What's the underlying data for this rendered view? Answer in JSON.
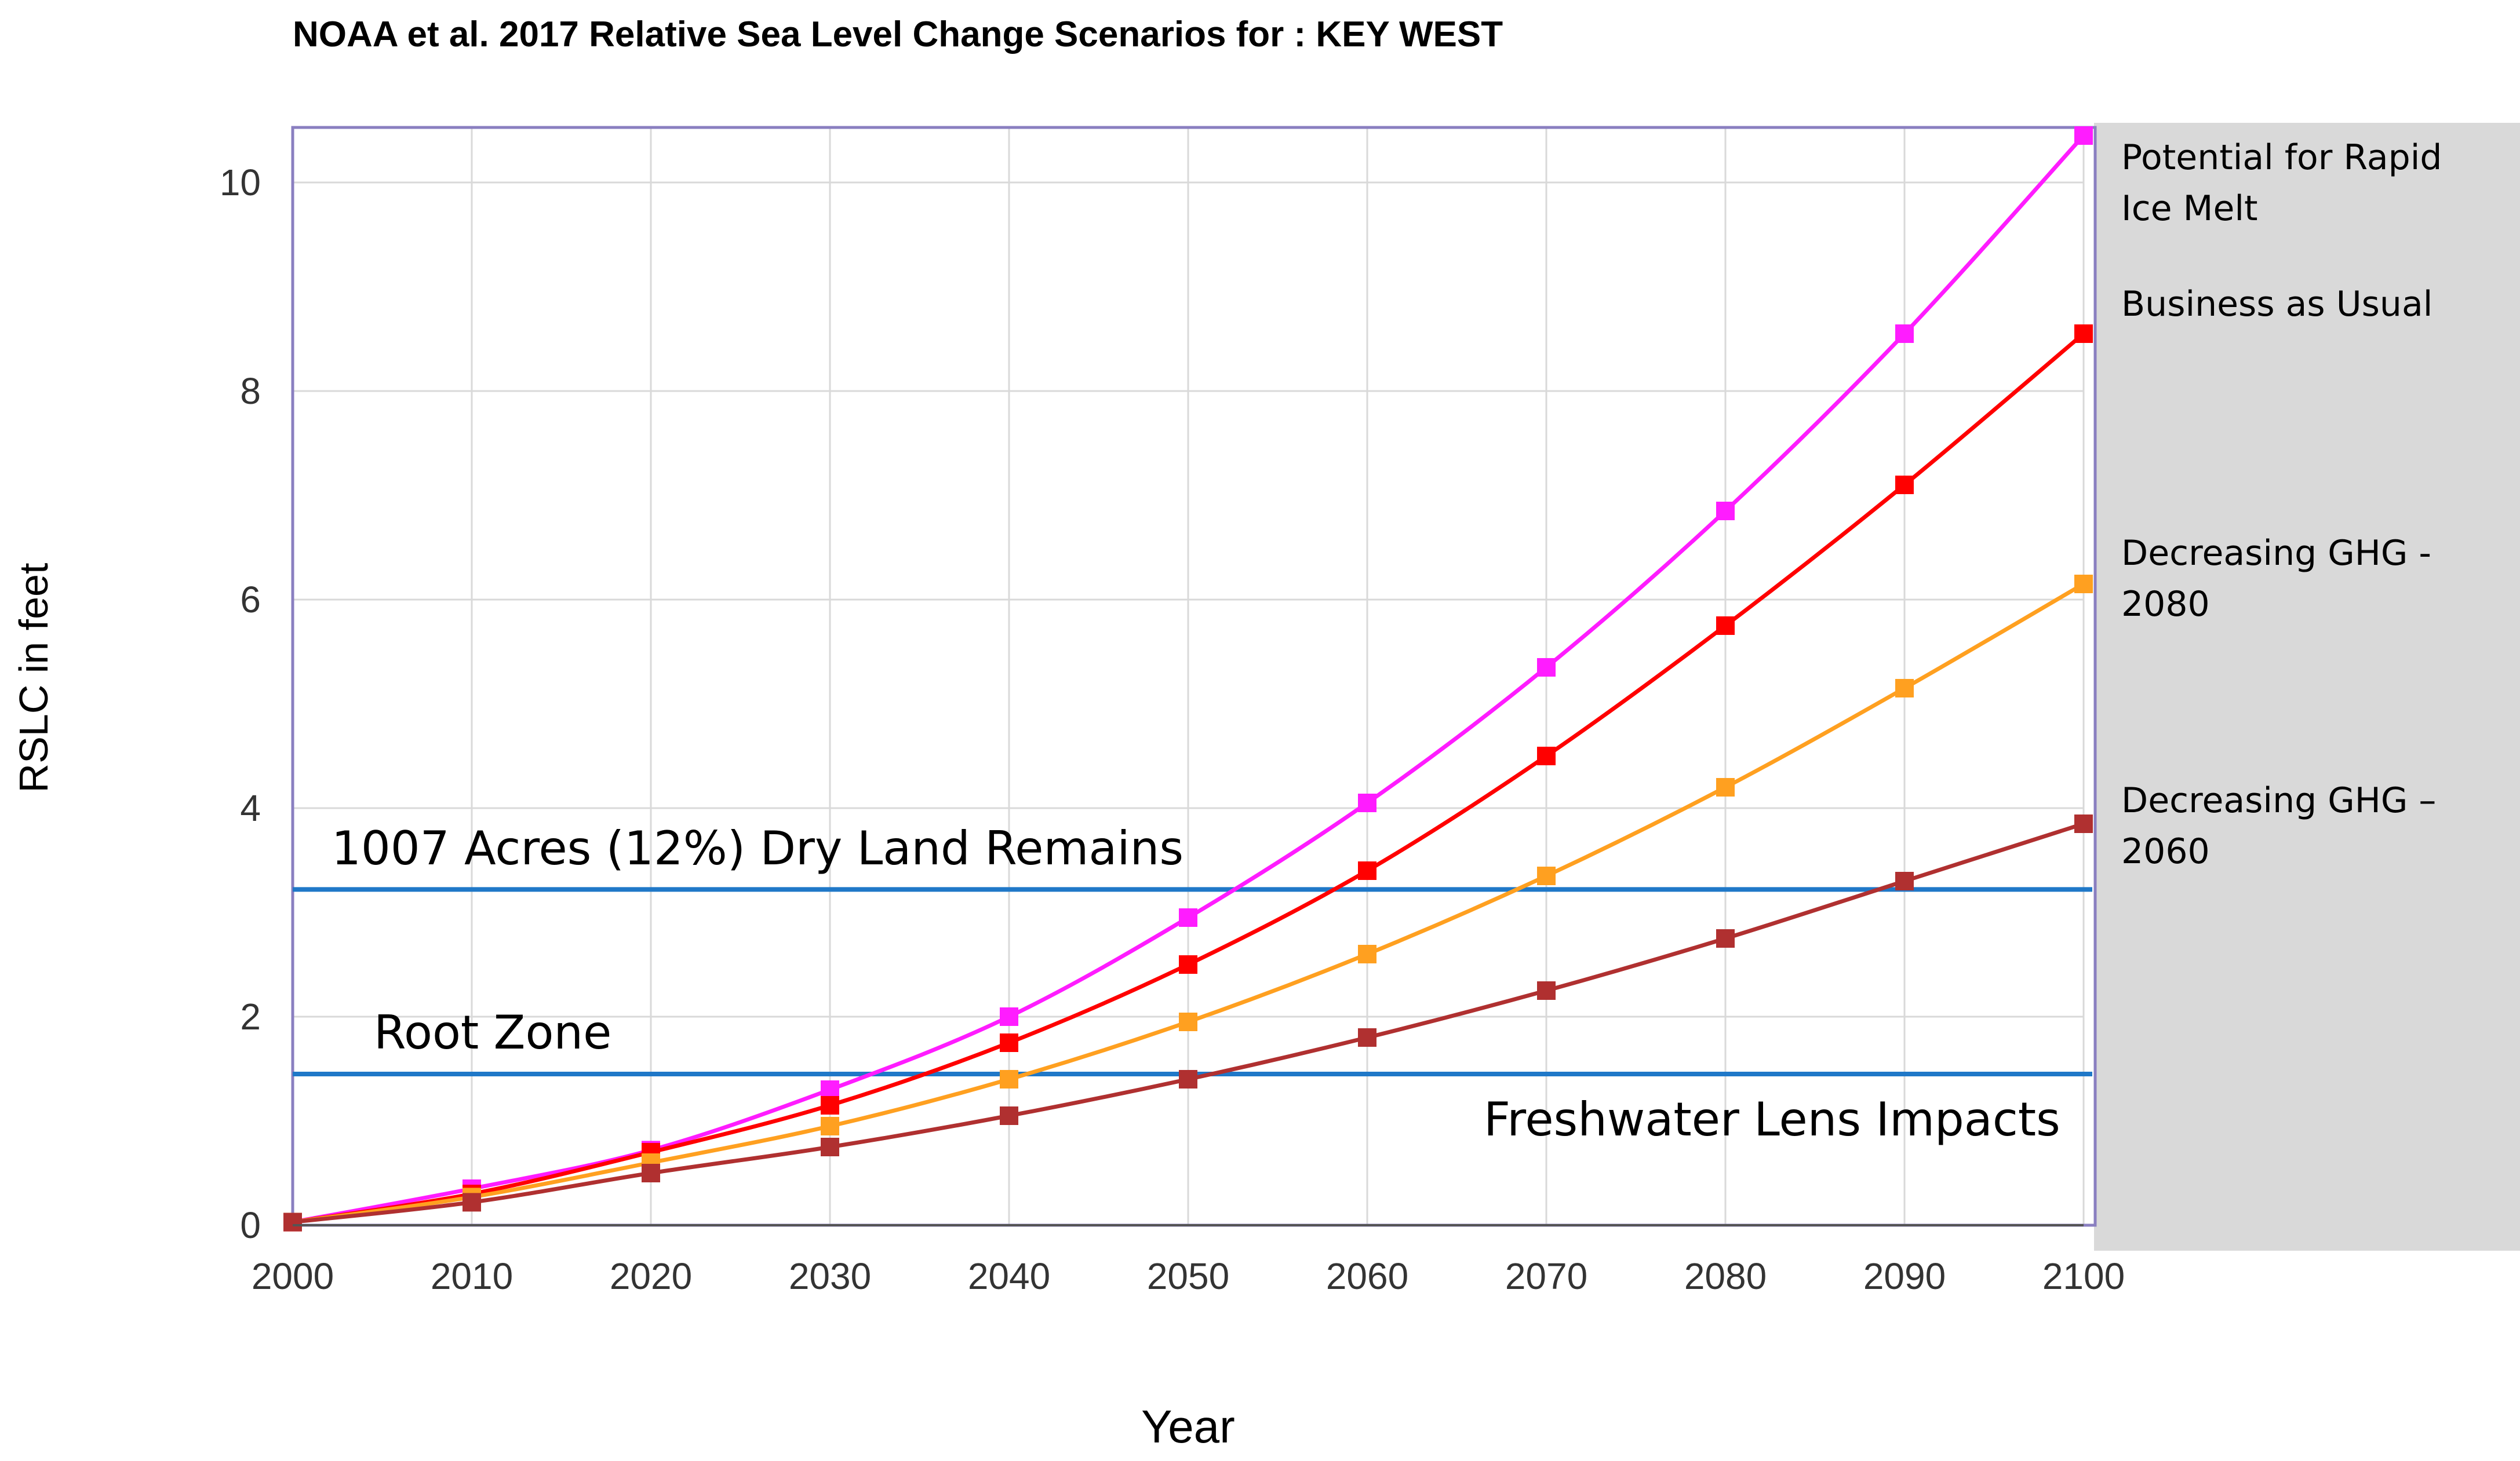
{
  "chart_data": {
    "type": "line",
    "title": "NOAA et al. 2017 Relative Sea Level Change Scenarios for : KEY WEST",
    "xlabel": "Year",
    "ylabel": "RSLC in feet",
    "x": [
      2000,
      2010,
      2020,
      2030,
      2040,
      2050,
      2060,
      2070,
      2080,
      2090,
      2100
    ],
    "xlim": [
      2000,
      2100
    ],
    "ylim": [
      0,
      10.5
    ],
    "x_ticks": [
      "2000",
      "2010",
      "2020",
      "2030",
      "2040",
      "2050",
      "2060",
      "2070",
      "2080",
      "2090",
      "2100"
    ],
    "y_ticks": [
      "0",
      "2",
      "4",
      "6",
      "8",
      "10"
    ],
    "grid": true,
    "legend_position": "right",
    "series": [
      {
        "name": "Potential for Rapid Ice Melt",
        "color": "#ff1cff",
        "values": [
          0.03,
          0.35,
          0.72,
          1.3,
          2.0,
          2.95,
          4.05,
          5.35,
          6.85,
          8.55,
          10.45
        ]
      },
      {
        "name": "Business as Usual",
        "color": "#ff0000",
        "values": [
          0.03,
          0.3,
          0.7,
          1.15,
          1.75,
          2.5,
          3.4,
          4.5,
          5.75,
          7.1,
          8.55
        ]
      },
      {
        "name": "Decreasing GHG - 2080",
        "color": "#ffa020",
        "values": [
          0.03,
          0.27,
          0.6,
          0.95,
          1.4,
          1.95,
          2.6,
          3.35,
          4.2,
          5.15,
          6.15
        ]
      },
      {
        "name": "Decreasing GHG – 2060",
        "color": "#b03030",
        "values": [
          0.03,
          0.22,
          0.5,
          0.75,
          1.05,
          1.4,
          1.8,
          2.25,
          2.75,
          3.3,
          3.85
        ]
      }
    ],
    "reference_lines": [
      {
        "label": "1007 Acres (12%) Dry Land Remains",
        "y": 3.22,
        "color": "#1f78c8"
      },
      {
        "label": "Root Zone",
        "y": 1.45,
        "color": "#1f78c8"
      }
    ],
    "annotations": [
      {
        "label": "Freshwater Lens Impacts"
      }
    ],
    "legend_lines": {
      "rapid": [
        "Potential for Rapid",
        "Ice Melt"
      ],
      "bau": [
        "Business as Usual"
      ],
      "ghg2080": [
        "Decreasing GHG -",
        "2080"
      ],
      "ghg2060": [
        "Decreasing GHG –",
        "2060"
      ]
    },
    "colors": {
      "grid": "#d9d9d9",
      "plot_border": "#8a7fc0",
      "legend_panel": "#d9d9d9",
      "text": "#000000",
      "tick_text": "#333333"
    }
  }
}
